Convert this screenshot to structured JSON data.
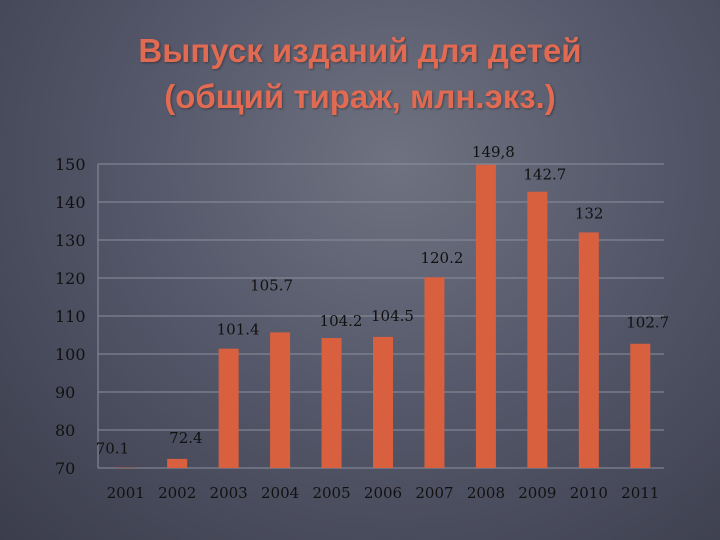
{
  "title_lines": [
    "Выпуск изданий для детей",
    "(общий тираж, млн.экз.)"
  ],
  "colors": {
    "bar": "#d8603f",
    "title": "#e06a52",
    "grid": "#8c8f9c",
    "text": "#111111"
  },
  "chart_data": {
    "type": "bar",
    "title": "Выпуск изданий для детей (общий тираж, млн.экз.)",
    "xlabel": "",
    "ylabel": "",
    "categories": [
      "2001",
      "2002",
      "2003",
      "2004",
      "2005",
      "2006",
      "2007",
      "2008",
      "2009",
      "2010",
      "2011"
    ],
    "values": [
      70.1,
      72.4,
      101.4,
      105.7,
      104.2,
      104.5,
      120.2,
      149.8,
      142.7,
      132,
      102.7
    ],
    "value_labels": [
      "70.1",
      "72.4",
      "101.4",
      "105.7",
      "104.2",
      "104.5",
      "120.2",
      "149,8",
      "142.7",
      "132",
      "102.7"
    ],
    "ylim": [
      70,
      150
    ],
    "yticks": [
      70,
      80,
      90,
      100,
      110,
      120,
      130,
      140,
      150
    ],
    "grid": true,
    "legend": "none"
  }
}
